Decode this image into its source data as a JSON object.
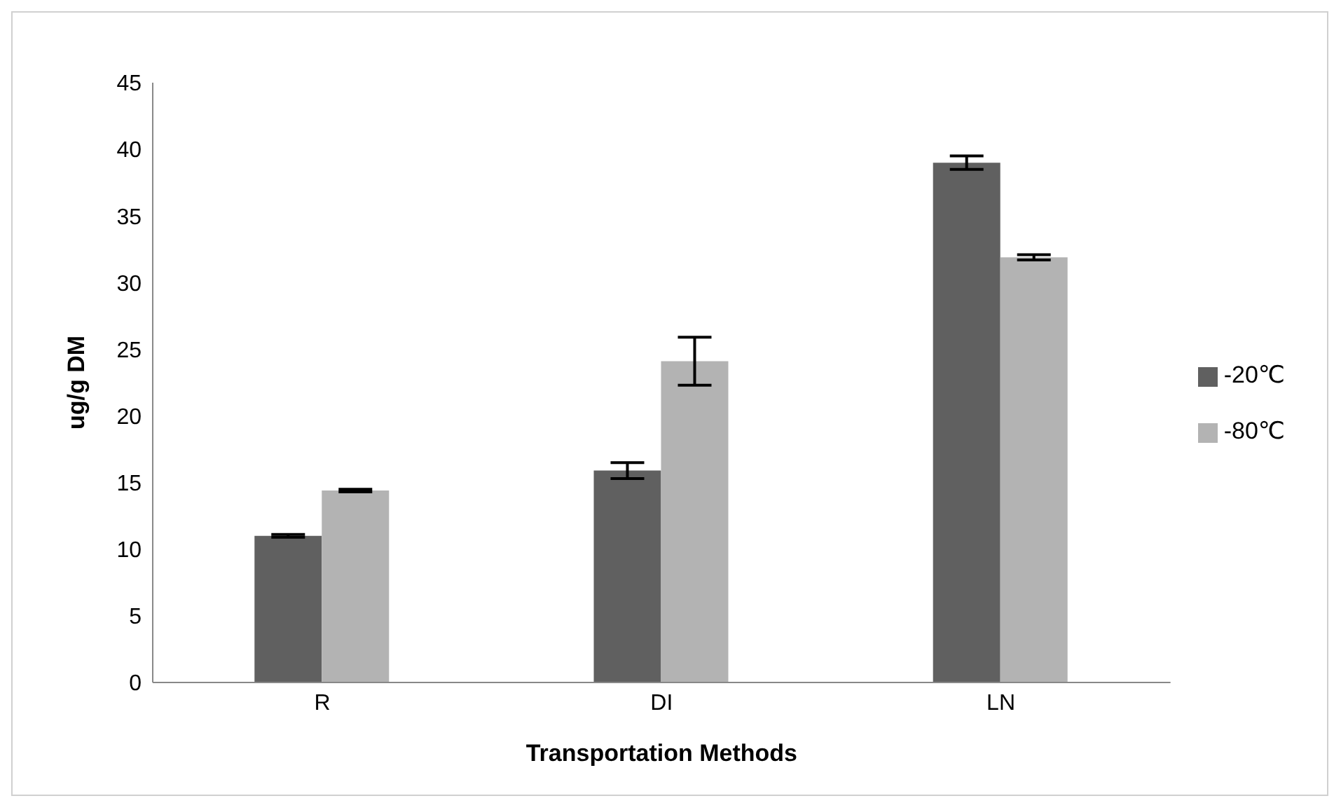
{
  "chart_data": {
    "type": "bar",
    "xlabel": "Transportation Methods",
    "ylabel": "ug/g DM",
    "categories": [
      "R",
      "DI",
      "LN"
    ],
    "series": [
      {
        "name": "-20℃",
        "color": "#606060",
        "values": [
          11,
          15.9,
          39
        ],
        "errors": [
          0.1,
          0.6,
          0.5
        ]
      },
      {
        "name": "-80℃",
        "color": "#b3b3b3",
        "values": [
          14.4,
          24.1,
          31.9
        ],
        "errors": [
          0.1,
          1.8,
          0.2
        ]
      }
    ],
    "ylim": [
      0,
      45
    ],
    "yticks": [
      0,
      5,
      10,
      15,
      20,
      25,
      30,
      35,
      40,
      45
    ],
    "grid": false,
    "legend": "right"
  }
}
